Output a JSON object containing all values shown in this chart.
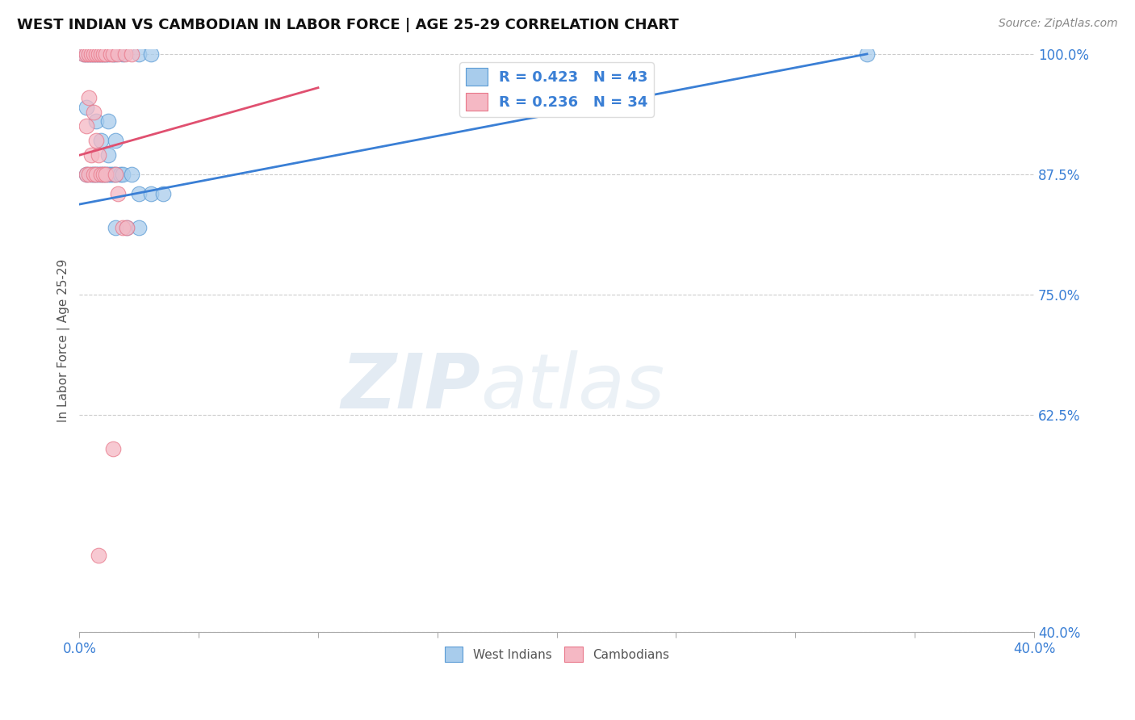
{
  "title": "WEST INDIAN VS CAMBODIAN IN LABOR FORCE | AGE 25-29 CORRELATION CHART",
  "source": "Source: ZipAtlas.com",
  "ylabel": "In Labor Force | Age 25-29",
  "xlim": [
    0.0,
    0.4
  ],
  "ylim": [
    0.4,
    1.005
  ],
  "right_ytick_labels": [
    "100.0%",
    "87.5%",
    "75.0%",
    "62.5%",
    "40.0%"
  ],
  "right_yticks": [
    1.0,
    0.875,
    0.75,
    0.625,
    0.4
  ],
  "legend_label1": "West Indians",
  "legend_label2": "Cambodians",
  "watermark_zip": "ZIP",
  "watermark_atlas": "atlas",
  "blue_color": "#A8CCEC",
  "pink_color": "#F5B8C4",
  "blue_edge_color": "#5B9BD5",
  "pink_edge_color": "#E8788A",
  "blue_line_color": "#3A7FD5",
  "pink_line_color": "#E05070",
  "legend_text_color": "#3A7FD5",
  "right_axis_color": "#3A7FD5",
  "blue_scatter": [
    [
      0.002,
      1.0
    ],
    [
      0.003,
      1.0
    ],
    [
      0.004,
      1.0
    ],
    [
      0.005,
      1.0
    ],
    [
      0.006,
      1.0
    ],
    [
      0.007,
      1.0
    ],
    [
      0.008,
      1.0
    ],
    [
      0.009,
      1.0
    ],
    [
      0.01,
      1.0
    ],
    [
      0.011,
      1.0
    ],
    [
      0.012,
      1.0
    ],
    [
      0.014,
      1.0
    ],
    [
      0.015,
      1.0
    ],
    [
      0.018,
      1.0
    ],
    [
      0.025,
      1.0
    ],
    [
      0.03,
      1.0
    ],
    [
      0.003,
      0.945
    ],
    [
      0.007,
      0.93
    ],
    [
      0.012,
      0.93
    ],
    [
      0.009,
      0.91
    ],
    [
      0.015,
      0.91
    ],
    [
      0.012,
      0.895
    ],
    [
      0.003,
      0.875
    ],
    [
      0.005,
      0.875
    ],
    [
      0.006,
      0.875
    ],
    [
      0.007,
      0.875
    ],
    [
      0.008,
      0.875
    ],
    [
      0.009,
      0.875
    ],
    [
      0.01,
      0.875
    ],
    [
      0.011,
      0.875
    ],
    [
      0.012,
      0.875
    ],
    [
      0.013,
      0.875
    ],
    [
      0.014,
      0.875
    ],
    [
      0.015,
      0.875
    ],
    [
      0.017,
      0.875
    ],
    [
      0.018,
      0.875
    ],
    [
      0.022,
      0.875
    ],
    [
      0.025,
      0.855
    ],
    [
      0.03,
      0.855
    ],
    [
      0.035,
      0.855
    ],
    [
      0.015,
      0.82
    ],
    [
      0.02,
      0.82
    ],
    [
      0.025,
      0.82
    ],
    [
      0.33,
      1.0
    ]
  ],
  "pink_scatter": [
    [
      0.002,
      1.0
    ],
    [
      0.003,
      1.0
    ],
    [
      0.004,
      1.0
    ],
    [
      0.005,
      1.0
    ],
    [
      0.006,
      1.0
    ],
    [
      0.007,
      1.0
    ],
    [
      0.008,
      1.0
    ],
    [
      0.009,
      1.0
    ],
    [
      0.01,
      1.0
    ],
    [
      0.011,
      1.0
    ],
    [
      0.013,
      1.0
    ],
    [
      0.014,
      1.0
    ],
    [
      0.016,
      1.0
    ],
    [
      0.019,
      1.0
    ],
    [
      0.022,
      1.0
    ],
    [
      0.004,
      0.955
    ],
    [
      0.006,
      0.94
    ],
    [
      0.003,
      0.925
    ],
    [
      0.007,
      0.91
    ],
    [
      0.005,
      0.895
    ],
    [
      0.008,
      0.895
    ],
    [
      0.003,
      0.875
    ],
    [
      0.004,
      0.875
    ],
    [
      0.006,
      0.875
    ],
    [
      0.007,
      0.875
    ],
    [
      0.009,
      0.875
    ],
    [
      0.01,
      0.875
    ],
    [
      0.011,
      0.875
    ],
    [
      0.015,
      0.875
    ],
    [
      0.016,
      0.855
    ],
    [
      0.018,
      0.82
    ],
    [
      0.02,
      0.82
    ],
    [
      0.014,
      0.59
    ],
    [
      0.008,
      0.48
    ]
  ],
  "blue_line": [
    [
      0.0,
      0.844
    ],
    [
      0.33,
      1.0
    ]
  ],
  "pink_line": [
    [
      0.0,
      0.895
    ],
    [
      0.1,
      0.965
    ]
  ]
}
